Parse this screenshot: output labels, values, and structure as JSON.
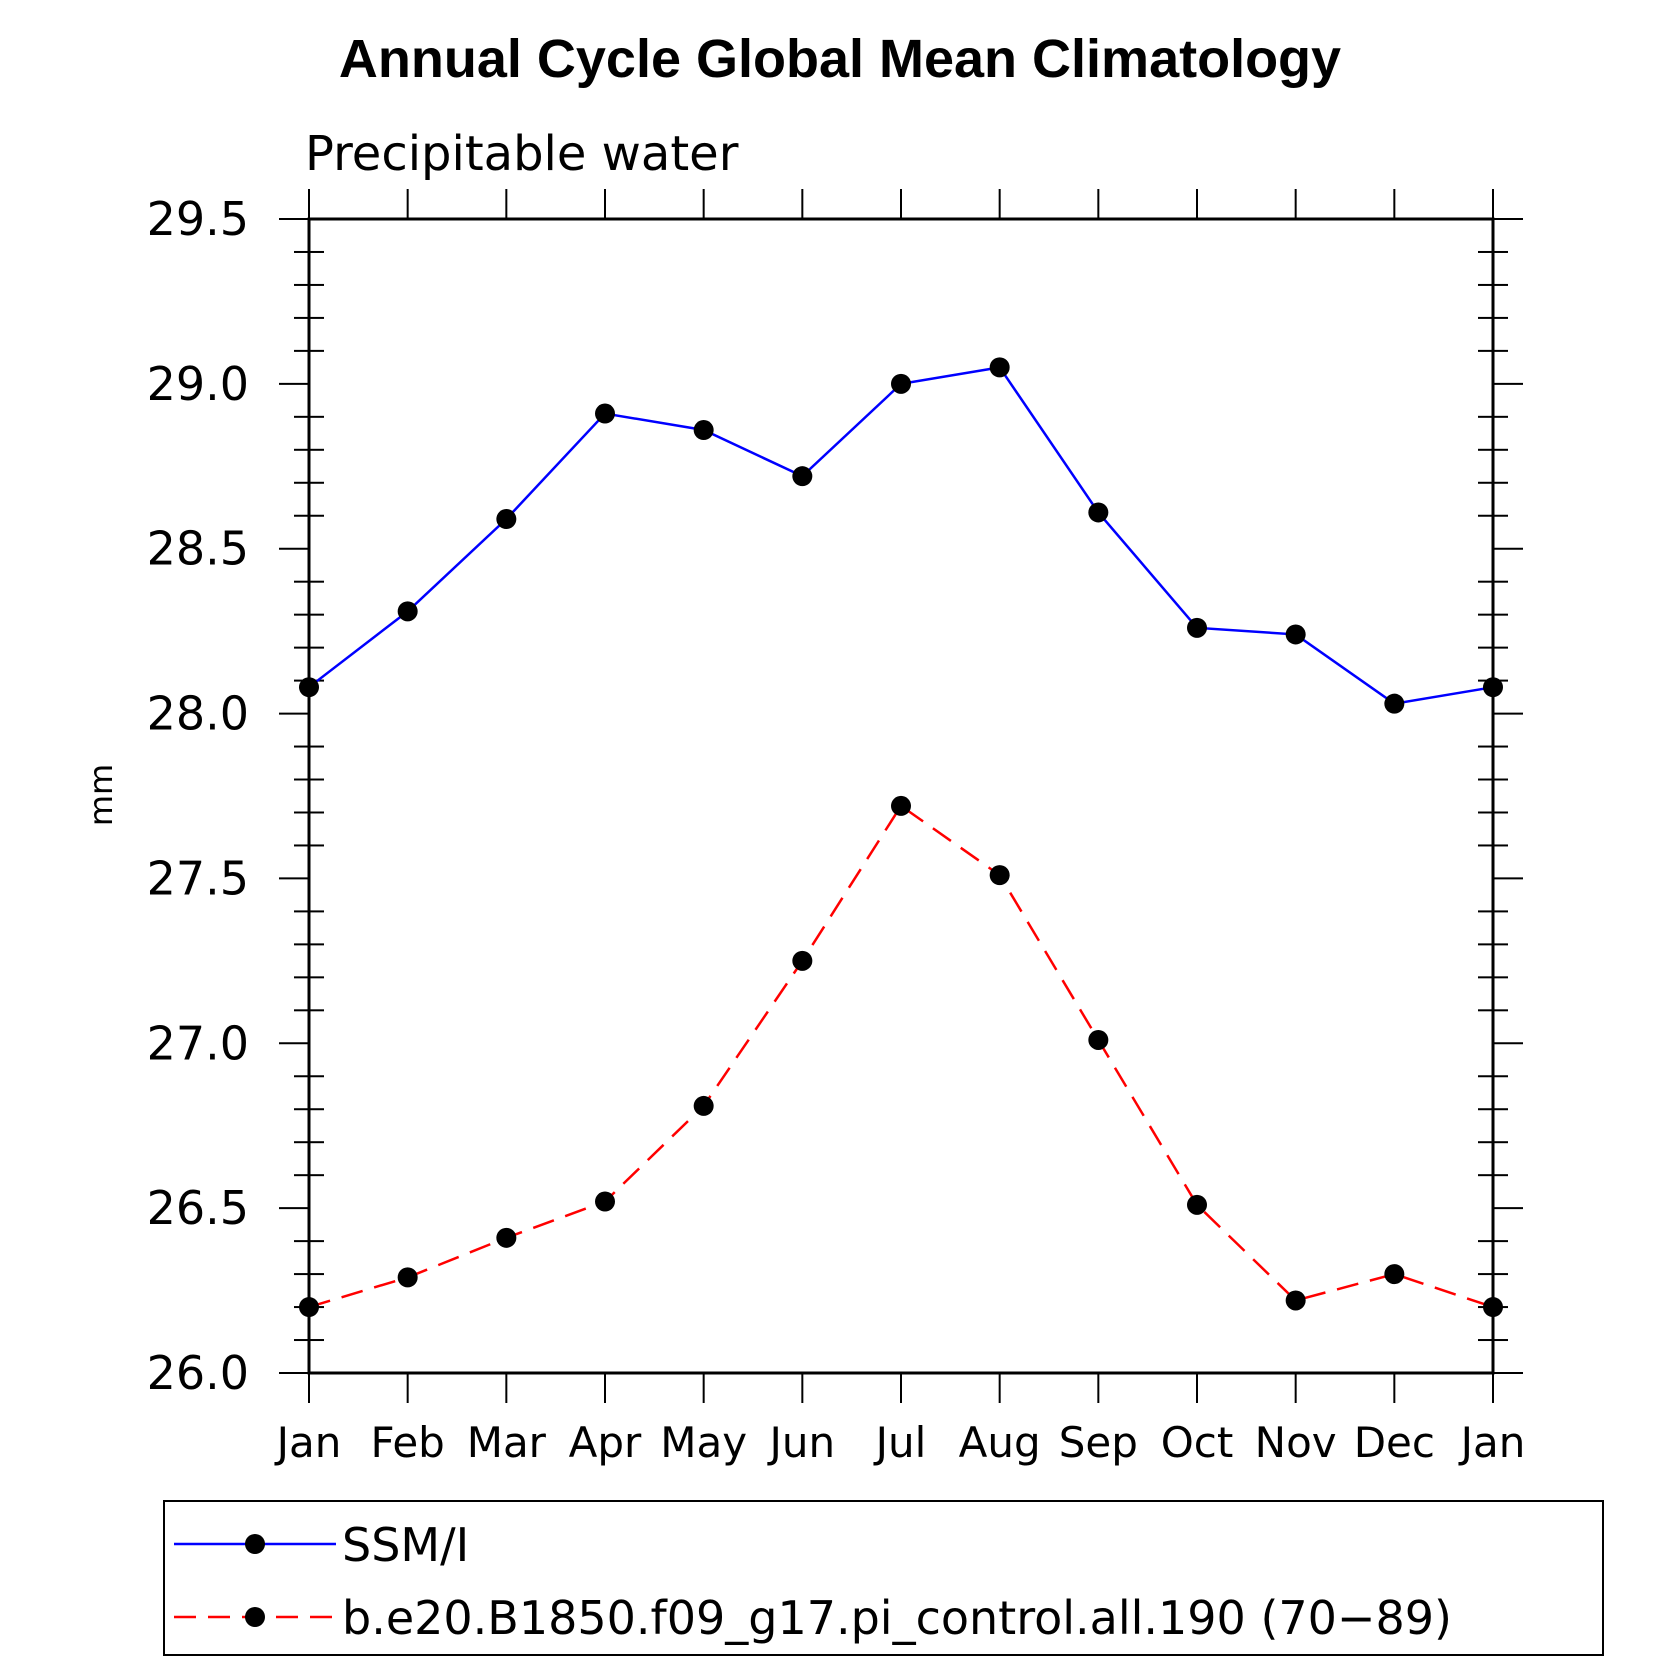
{
  "chart_data": {
    "type": "line",
    "title": "Annual Cycle Global Mean Climatology",
    "subtitle": "Precipitable water",
    "ylabel": "mm",
    "xlabel": "",
    "categories": [
      "Jan",
      "Feb",
      "Mar",
      "Apr",
      "May",
      "Jun",
      "Jul",
      "Aug",
      "Sep",
      "Oct",
      "Nov",
      "Dec",
      "Jan"
    ],
    "ylim": [
      26.0,
      29.5
    ],
    "yticks": [
      "26.0",
      "26.5",
      "27.0",
      "27.5",
      "28.0",
      "28.5",
      "29.0",
      "29.5"
    ],
    "series": [
      {
        "name": "SSM/I",
        "color": "#0000ff",
        "dashed": false,
        "values": [
          28.08,
          28.31,
          28.59,
          28.91,
          28.86,
          28.72,
          29.0,
          29.05,
          28.61,
          28.26,
          28.24,
          28.03,
          28.08
        ]
      },
      {
        "name": "b.e20.B1850.f09_g17.pi_control.all.190 (70−89)",
        "color": "#ff0000",
        "dashed": true,
        "values": [
          26.2,
          26.29,
          26.41,
          26.52,
          26.81,
          27.25,
          27.72,
          27.51,
          27.01,
          26.51,
          26.22,
          26.3,
          26.2
        ]
      }
    ],
    "legend_position": "bottom",
    "grid": false
  }
}
